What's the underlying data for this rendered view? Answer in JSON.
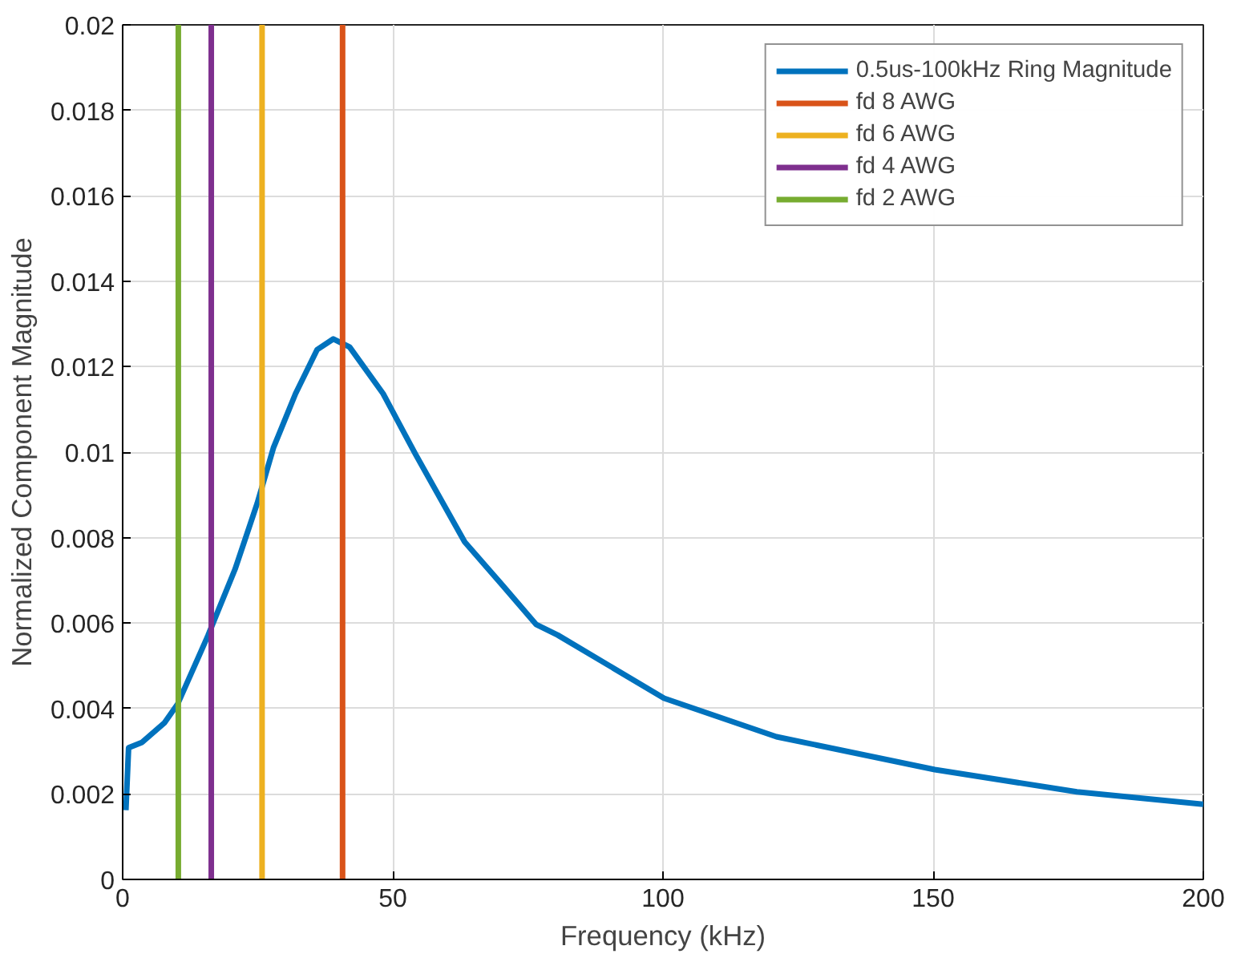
{
  "chart_data": {
    "type": "line",
    "xlabel": "Frequency (kHz)",
    "ylabel": "Normalized Component Magnitude",
    "xlim": [
      0,
      200
    ],
    "xticks": [
      0,
      50,
      100,
      150,
      200
    ],
    "ylim": [
      0,
      0.02
    ],
    "yticks": [
      0,
      0.002,
      0.004,
      0.006,
      0.008,
      0.01,
      0.012,
      0.014,
      0.016,
      0.018,
      0.02
    ],
    "grid": true,
    "legend": "top right",
    "marker": "none",
    "line_style": "solid",
    "series": [
      {
        "name": "0.5us-100kHz Ring Magnitude",
        "color": "#0072bd",
        "x": [
          0.6,
          1.1,
          3.6,
          7.7,
          10.2,
          15.8,
          20.8,
          24.9,
          27.9,
          32,
          36,
          39,
          42,
          48.2,
          54.2,
          63.3,
          70.4,
          76.5,
          80.5,
          100.2,
          121,
          150.3,
          176.6,
          200
        ],
        "values": [
          0.00162,
          0.00308,
          0.00321,
          0.00366,
          0.00411,
          0.00571,
          0.00726,
          0.0088,
          0.0101,
          0.01137,
          0.0124,
          0.01265,
          0.01246,
          0.01137,
          0.00995,
          0.0079,
          0.00687,
          0.00597,
          0.00572,
          0.00424,
          0.00334,
          0.00257,
          0.00205,
          0.00176
        ]
      },
      {
        "name": "fd 8 AWG",
        "color": "#d95319",
        "x": [
          40.7,
          40.7
        ],
        "values": [
          0,
          0.02
        ]
      },
      {
        "name": "fd 6 AWG",
        "color": "#edb120",
        "x": [
          25.8,
          25.8
        ],
        "values": [
          0,
          0.02
        ]
      },
      {
        "name": "fd 4 AWG",
        "color": "#7e2f8e",
        "x": [
          16.4,
          16.4
        ],
        "values": [
          0,
          0.02
        ]
      },
      {
        "name": "fd 2 AWG",
        "color": "#77ac30",
        "x": [
          10.3,
          10.3
        ],
        "values": [
          0,
          0.02
        ]
      }
    ]
  }
}
